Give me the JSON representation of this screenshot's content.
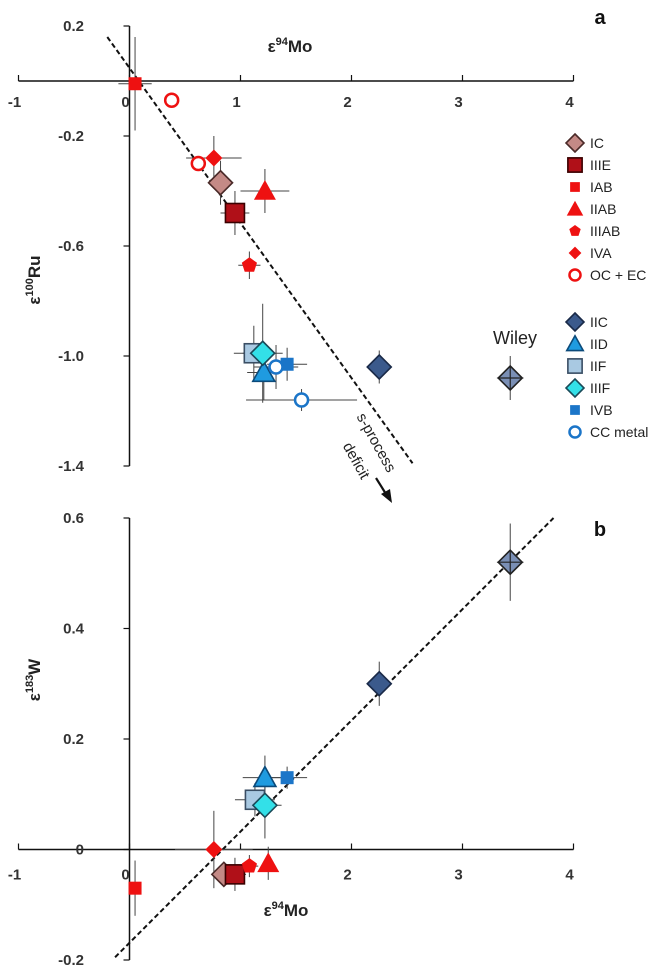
{
  "chart_data": [
    {
      "panel": "a",
      "type": "scatter",
      "xlabel_base": "ε",
      "xlabel_sup": "94",
      "xlabel_rest": "Mo",
      "ylabel_base": "ε",
      "ylabel_sup": "100",
      "ylabel_rest": "Ru",
      "xlim": [
        -1,
        4
      ],
      "ylim": [
        -1.4,
        0.2
      ],
      "xticks": [
        "-1",
        "0",
        "1",
        "2",
        "3",
        "4"
      ],
      "yticks": [
        "0.2",
        "-0.2",
        "-0.6",
        "-1.0",
        "-1.4"
      ],
      "annotations": {
        "wiley": "Wiley",
        "sprocess": "s-process",
        "deficit": "deficit"
      },
      "series": [
        {
          "name": "IC",
          "points": [
            {
              "x": 0.82,
              "y": -0.37,
              "xerr": 0.1,
              "yerr": 0.08
            }
          ]
        },
        {
          "name": "IIIE",
          "points": [
            {
              "x": 0.95,
              "y": -0.48,
              "xerr": 0.13,
              "yerr": 0.08
            }
          ]
        },
        {
          "name": "IAB",
          "points": [
            {
              "x": 0.05,
              "y": -0.01,
              "xerr": 0.15,
              "yerr": 0.17
            }
          ]
        },
        {
          "name": "IIAB",
          "points": [
            {
              "x": 1.22,
              "y": -0.4,
              "xerr": 0.22,
              "yerr": 0.08
            }
          ]
        },
        {
          "name": "IIIAB",
          "points": [
            {
              "x": 1.08,
              "y": -0.67,
              "xerr": 0.1,
              "yerr": 0.05
            }
          ]
        },
        {
          "name": "IVA",
          "points": [
            {
              "x": 0.76,
              "y": -0.28,
              "xerr": 0.25,
              "yerr": 0.08
            }
          ]
        },
        {
          "name": "OC + EC",
          "points": [
            {
              "x": 0.38,
              "y": -0.07,
              "xerr": 0,
              "yerr": 0
            },
            {
              "x": 0.62,
              "y": -0.3,
              "xerr": 0,
              "yerr": 0
            }
          ]
        },
        {
          "name": "IIC",
          "points": [
            {
              "x": 2.25,
              "y": -1.04,
              "xerr": 0.06,
              "yerr": 0.06
            }
          ]
        },
        {
          "name": "IID",
          "points": [
            {
              "x": 1.21,
              "y": -1.06,
              "xerr": 0.15,
              "yerr": 0.1
            }
          ]
        },
        {
          "name": "IIF",
          "points": [
            {
              "x": 1.12,
              "y": -0.99,
              "xerr": 0.18,
              "yerr": 0.1
            }
          ]
        },
        {
          "name": "IIIF",
          "points": [
            {
              "x": 1.2,
              "y": -0.99,
              "xerr": 0.18,
              "yerr": 0.18
            }
          ]
        },
        {
          "name": "IVB",
          "points": [
            {
              "x": 1.42,
              "y": -1.03,
              "xerr": 0.18,
              "yerr": 0.06
            }
          ]
        },
        {
          "name": "CC metal",
          "points": [
            {
              "x": 1.32,
              "y": -1.04,
              "xerr": 0.2,
              "yerr": 0.08
            },
            {
              "x": 1.55,
              "y": -1.16,
              "xerr": 0.5,
              "yerr": 0.04
            }
          ]
        },
        {
          "name": "Wiley",
          "points": [
            {
              "x": 3.43,
              "y": -1.08,
              "xerr": 0.12,
              "yerr": 0.08
            }
          ]
        }
      ],
      "trendline": {
        "x": [
          -0.2,
          2.55
        ],
        "y": [
          0.16,
          -1.39
        ]
      },
      "arrow": {
        "from": [
          2.26,
          -1.4
        ],
        "to": [
          2.3,
          -1.5
        ]
      }
    },
    {
      "panel": "b",
      "type": "scatter",
      "xlabel_base": "ε",
      "xlabel_sup": "94",
      "xlabel_rest": "Mo",
      "ylabel_base": "ε",
      "ylabel_sup": "183",
      "ylabel_rest": "W",
      "xlim": [
        -1,
        4
      ],
      "ylim": [
        -0.2,
        0.6
      ],
      "xticks": [
        "-1",
        "0",
        "1",
        "2",
        "3",
        "4"
      ],
      "yticks": [
        "0.6",
        "0.4",
        "0.2",
        "0",
        "-0.2"
      ],
      "series": [
        {
          "name": "IC",
          "points": [
            {
              "x": 0.85,
              "y": -0.045,
              "xerr": 0.08,
              "yerr": 0.02
            }
          ]
        },
        {
          "name": "IIIE",
          "points": [
            {
              "x": 0.95,
              "y": -0.045,
              "xerr": 0.1,
              "yerr": 0.03
            }
          ]
        },
        {
          "name": "IAB",
          "points": [
            {
              "x": 0.05,
              "y": -0.07,
              "xerr": 0.03,
              "yerr": 0.05
            }
          ]
        },
        {
          "name": "IIAB",
          "points": [
            {
              "x": 1.25,
              "y": -0.025,
              "xerr": 0.05,
              "yerr": 0.03
            }
          ]
        },
        {
          "name": "IIIAB",
          "points": [
            {
              "x": 1.08,
              "y": -0.03,
              "xerr": 0.08,
              "yerr": 0.02
            }
          ]
        },
        {
          "name": "IVA",
          "points": [
            {
              "x": 0.76,
              "y": 0.0,
              "xerr": 0.35,
              "yerr": 0.07
            }
          ]
        },
        {
          "name": "IIC",
          "points": [
            {
              "x": 2.25,
              "y": 0.3,
              "xerr": 0.06,
              "yerr": 0.04
            }
          ]
        },
        {
          "name": "IID",
          "points": [
            {
              "x": 1.22,
              "y": 0.13,
              "xerr": 0.2,
              "yerr": 0.04
            }
          ]
        },
        {
          "name": "IIF",
          "points": [
            {
              "x": 1.13,
              "y": 0.09,
              "xerr": 0.18,
              "yerr": 0.03
            }
          ]
        },
        {
          "name": "IIIF",
          "points": [
            {
              "x": 1.22,
              "y": 0.08,
              "xerr": 0.15,
              "yerr": 0.06
            }
          ]
        },
        {
          "name": "IVB",
          "points": [
            {
              "x": 1.42,
              "y": 0.13,
              "xerr": 0.18,
              "yerr": 0.02
            }
          ]
        },
        {
          "name": "Wiley",
          "points": [
            {
              "x": 3.43,
              "y": 0.52,
              "xerr": 0.12,
              "yerr": 0.07
            }
          ]
        }
      ],
      "trendline": {
        "x": [
          -0.13,
          3.82
        ],
        "y": [
          -0.195,
          0.6
        ]
      }
    }
  ],
  "legend": [
    {
      "name": "IC",
      "marker": "diamond",
      "fill": "#c48a86",
      "stroke": "#4a2a28"
    },
    {
      "name": "IIIE",
      "marker": "square",
      "fill": "#b01018",
      "stroke": "#3a0000"
    },
    {
      "name": "IAB",
      "marker": "square-sm",
      "fill": "#ee1111",
      "stroke": "none"
    },
    {
      "name": "IIAB",
      "marker": "triangle",
      "fill": "#ee1111",
      "stroke": "none"
    },
    {
      "name": "IIIAB",
      "marker": "pentagon",
      "fill": "#ee1111",
      "stroke": "none"
    },
    {
      "name": "IVA",
      "marker": "diamond-sm",
      "fill": "#ee1111",
      "stroke": "none"
    },
    {
      "name": "OC + EC",
      "marker": "circle-open",
      "fill": "#ffffff",
      "stroke": "#ee1111"
    },
    {
      "name": "IIC",
      "marker": "diamond",
      "fill": "#3b5a8c",
      "stroke": "#1a2a48"
    },
    {
      "name": "IID",
      "marker": "triangle",
      "fill": "#1f9be0",
      "stroke": "#0b4a7a"
    },
    {
      "name": "IIF",
      "marker": "square",
      "fill": "#a9c9e2",
      "stroke": "#3a4e64"
    },
    {
      "name": "IIIF",
      "marker": "diamond",
      "fill": "#33e0e8",
      "stroke": "#1a4a58"
    },
    {
      "name": "IVB",
      "marker": "square-sm",
      "fill": "#1b75c8",
      "stroke": "none"
    },
    {
      "name": "CC metal",
      "marker": "circle-open",
      "fill": "#ffffff",
      "stroke": "#1b75c8"
    }
  ],
  "wiley_style": {
    "marker": "diamond",
    "fill": "#7a8fb5",
    "stroke": "#222222"
  }
}
